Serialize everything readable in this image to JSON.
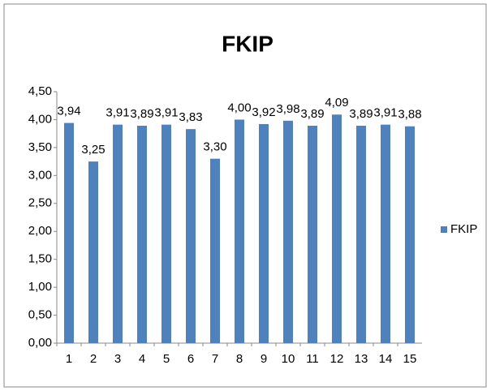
{
  "chart_data": {
    "type": "bar",
    "title": "FKIP",
    "categories": [
      "1",
      "2",
      "3",
      "4",
      "5",
      "6",
      "7",
      "8",
      "9",
      "10",
      "11",
      "12",
      "13",
      "14",
      "15"
    ],
    "series": [
      {
        "name": "FKIP",
        "color": "#4f81bd",
        "values": [
          3.94,
          3.25,
          3.91,
          3.89,
          3.91,
          3.83,
          3.3,
          4.0,
          3.92,
          3.98,
          3.89,
          4.09,
          3.89,
          3.91,
          3.88
        ],
        "value_labels": [
          "3,94",
          "3,25",
          "3,91",
          "3,89",
          "3,91",
          "3,83",
          "3,30",
          "4,00",
          "3,92",
          "3,98",
          "3,89",
          "4,09",
          "3,89",
          "3,91",
          "3,88"
        ]
      }
    ],
    "ylim": [
      0,
      4.5
    ],
    "yticks": [
      {
        "value": 0,
        "label": "0,00"
      },
      {
        "value": 0.5,
        "label": "0,50"
      },
      {
        "value": 1,
        "label": "1,00"
      },
      {
        "value": 1.5,
        "label": "1,50"
      },
      {
        "value": 2,
        "label": "2,00"
      },
      {
        "value": 2.5,
        "label": "2,50"
      },
      {
        "value": 3,
        "label": "3,00"
      },
      {
        "value": 3.5,
        "label": "3,50"
      },
      {
        "value": 4,
        "label": "4,00"
      },
      {
        "value": 4.5,
        "label": "4,50"
      }
    ],
    "grid": false,
    "legend": "right"
  }
}
